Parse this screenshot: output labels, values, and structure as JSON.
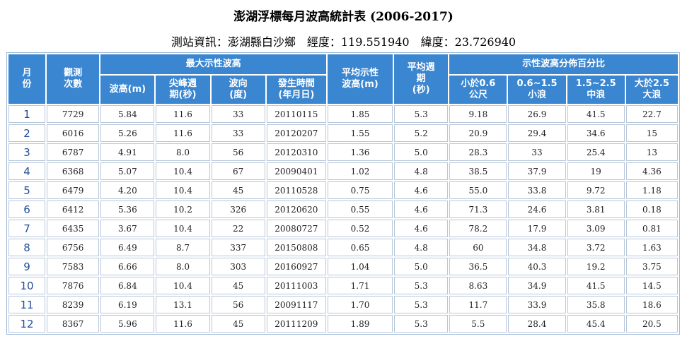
{
  "title": "澎湖浮標每月波高統計表 (2006-2017)",
  "subtitle": "測站資訊：澎湖縣白沙鄉　經度：119.551940　緯度：23.726940",
  "headers": {
    "month": "月\n份",
    "count": "觀測\n次數",
    "max_group": "最大示性波高",
    "max_height": "波高(m)",
    "max_peak_period": "尖峰週\n期(秒)",
    "max_direction": "波向\n(度)",
    "max_time": "發生時間\n(年月日)",
    "avg_height": "平均示性\n波高(m)",
    "avg_period": "平均週\n期\n(秒)",
    "dist_group": "示性波高分佈百分比",
    "dist_lt06": "小於0.6\n公尺",
    "dist_06_15": "0.6~1.5\n小浪",
    "dist_15_25": "1.5~2.5\n中浪",
    "dist_gt25": "大於2.5\n大浪"
  },
  "rows": [
    [
      "1",
      "7729",
      "5.84",
      "11.6",
      "33",
      "20110115",
      "1.85",
      "5.3",
      "9.18",
      "26.9",
      "41.5",
      "22.7"
    ],
    [
      "2",
      "6016",
      "5.26",
      "11.6",
      "33",
      "20120207",
      "1.55",
      "5.2",
      "20.9",
      "29.4",
      "34.6",
      "15"
    ],
    [
      "3",
      "6787",
      "4.91",
      "8.0",
      "56",
      "20120310",
      "1.36",
      "5.0",
      "28.3",
      "33",
      "25.4",
      "13"
    ],
    [
      "4",
      "6368",
      "5.07",
      "10.4",
      "67",
      "20090401",
      "1.02",
      "4.8",
      "38.5",
      "37.9",
      "19",
      "4.36"
    ],
    [
      "5",
      "6479",
      "4.20",
      "10.4",
      "45",
      "20110528",
      "0.75",
      "4.6",
      "55.0",
      "33.8",
      "9.72",
      "1.18"
    ],
    [
      "6",
      "6412",
      "5.36",
      "10.2",
      "326",
      "20120620",
      "0.55",
      "4.6",
      "71.3",
      "24.6",
      "3.81",
      "0.18"
    ],
    [
      "7",
      "6435",
      "3.67",
      "10.4",
      "22",
      "20080727",
      "0.52",
      "4.6",
      "78.2",
      "17.9",
      "3.09",
      "0.81"
    ],
    [
      "8",
      "6756",
      "6.49",
      "8.7",
      "337",
      "20150808",
      "0.65",
      "4.8",
      "60",
      "34.8",
      "3.72",
      "1.63"
    ],
    [
      "9",
      "7583",
      "6.66",
      "8.0",
      "303",
      "20160927",
      "1.04",
      "5.0",
      "36.5",
      "40.3",
      "19.2",
      "3.75"
    ],
    [
      "10",
      "7876",
      "6.84",
      "10.4",
      "45",
      "20111003",
      "1.71",
      "5.3",
      "8.63",
      "34.9",
      "41.5",
      "14.5"
    ],
    [
      "11",
      "8239",
      "6.19",
      "13.1",
      "56",
      "20091117",
      "1.70",
      "5.3",
      "11.7",
      "33.9",
      "35.8",
      "18.6"
    ],
    [
      "12",
      "8367",
      "5.96",
      "11.6",
      "45",
      "20111209",
      "1.89",
      "5.3",
      "5.5",
      "28.4",
      "45.4",
      "20.5"
    ]
  ]
}
